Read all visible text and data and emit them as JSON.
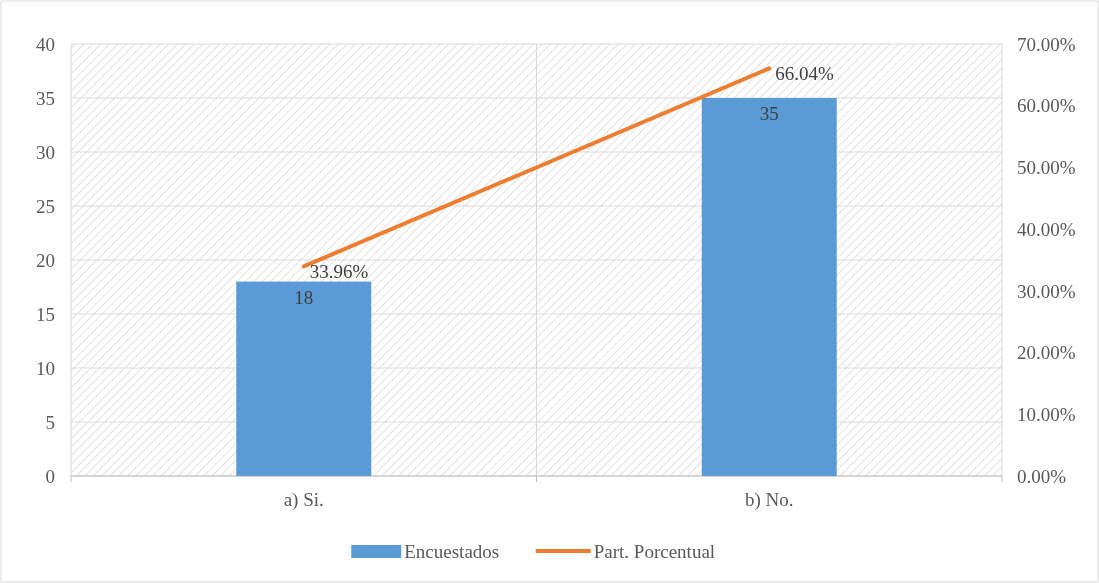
{
  "chart_data": {
    "type": "bar",
    "categories": [
      "a) Si.",
      "b) No."
    ],
    "series": [
      {
        "name": "Encuestados",
        "color": "#5b9bd5",
        "values": [
          18,
          35
        ],
        "value_labels": [
          "18",
          "35"
        ]
      },
      {
        "name": "Part. Porcentual",
        "type": "line",
        "axis": "y2",
        "color": "#ed7d31",
        "values": [
          33.96,
          66.04
        ],
        "value_labels": [
          "33.96%",
          "66.04%"
        ],
        "marker": "none"
      }
    ],
    "ylim": [
      0,
      40
    ],
    "yticks": [
      0,
      5,
      10,
      15,
      20,
      25,
      30,
      35,
      40
    ],
    "y2lim": [
      0,
      70
    ],
    "y2ticks": [
      {
        "value": 0,
        "label": "0.00%"
      },
      {
        "value": 10,
        "label": "10.00%"
      },
      {
        "value": 20,
        "label": "20.00%"
      },
      {
        "value": 30,
        "label": "30.00%"
      },
      {
        "value": 40,
        "label": "40.00%"
      },
      {
        "value": 50,
        "label": "50.00%"
      },
      {
        "value": 60,
        "label": "60.00%"
      },
      {
        "value": 70,
        "label": "70.00%"
      }
    ],
    "grid": true,
    "legend": "bottom"
  }
}
